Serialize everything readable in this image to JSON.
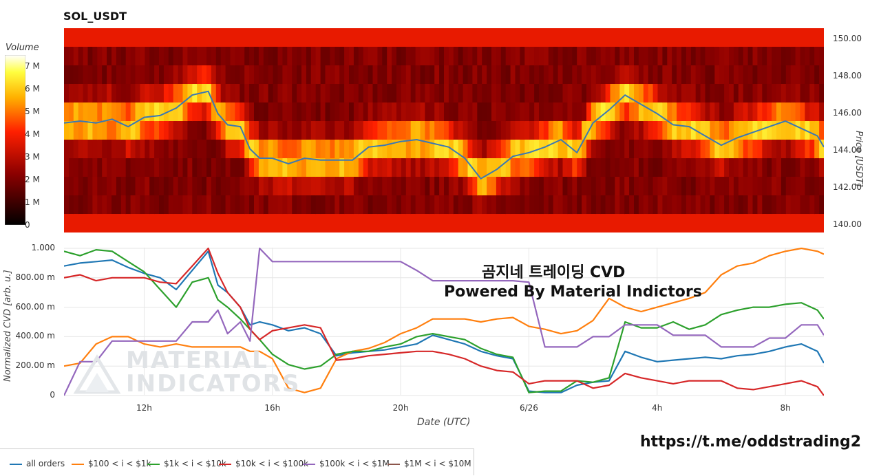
{
  "title": "SOL_USDT",
  "colorbar": {
    "title": "Volume",
    "ticks": [
      "7 M",
      "6 M",
      "5 M",
      "4 M",
      "3 M",
      "2 M",
      "1 M",
      "0"
    ]
  },
  "price_axis": {
    "label": "Price [USDT]",
    "ticks": [
      "150.00",
      "148.00",
      "146.00",
      "144.00",
      "142.00",
      "140.00"
    ]
  },
  "cvd_axis": {
    "label": "Normalized CVD [arb. u.]",
    "ticks": [
      "1.000",
      "800.00 m",
      "600.00 m",
      "400.00 m",
      "200.00 m",
      "0"
    ]
  },
  "x_axis": {
    "label": "Date (UTC)",
    "ticks": [
      "12h",
      "16h",
      "20h",
      "6/26",
      "4h",
      "8h"
    ]
  },
  "overlay": {
    "line1": "곰지네 트레이딩 CVD",
    "line2": "Powered By Material Indictors"
  },
  "watermark": {
    "line1": "MATERIAL",
    "line2": "INDICATORS"
  },
  "link": "https://t.me/oddstrading2",
  "legend": [
    {
      "label": "all orders",
      "color": "#1f77b4"
    },
    {
      "label": "$100 < i < $1k",
      "color": "#ff7f0e"
    },
    {
      "label": "$1k < i < $10k",
      "color": "#2ca02c"
    },
    {
      "label": "$10k < i < $100k",
      "color": "#d62728"
    },
    {
      "label": "$100k < i < $1M",
      "color": "#9467bd"
    },
    {
      "label": "$1M < i < $10M",
      "color": "#8c564b"
    }
  ],
  "chart_data": [
    {
      "type": "heatmap",
      "title": "SOL_USDT",
      "ylabel": "Price [USDT]",
      "ylim": [
        139.6,
        150.6
      ],
      "colorbar_label": "Volume",
      "colorbar_range": [
        0,
        7500000
      ],
      "price_series": {
        "x_hours": [
          9.5,
          10,
          10.5,
          11,
          11.5,
          12,
          12.5,
          13,
          13.5,
          14,
          14.3,
          14.6,
          15,
          15.3,
          15.6,
          16,
          16.5,
          17,
          17.5,
          18,
          18.5,
          19,
          19.5,
          20,
          20.5,
          21,
          21.5,
          22,
          22.5,
          23,
          23.5,
          24,
          24.5,
          25,
          25.5,
          26,
          26.5,
          27,
          27.5,
          28,
          28.5,
          29,
          29.5,
          30,
          30.5,
          31,
          31.5,
          32,
          32.5,
          33,
          33.2
        ],
        "price": [
          145.5,
          145.6,
          145.5,
          145.7,
          145.3,
          145.8,
          145.9,
          146.3,
          147.0,
          147.2,
          146.0,
          145.4,
          145.3,
          144.1,
          143.6,
          143.6,
          143.3,
          143.6,
          143.5,
          143.5,
          143.5,
          144.2,
          144.3,
          144.5,
          144.6,
          144.4,
          144.2,
          143.6,
          142.5,
          143.0,
          143.7,
          143.9,
          144.2,
          144.6,
          143.9,
          145.5,
          146.2,
          147.0,
          146.5,
          146.0,
          145.4,
          145.3,
          144.8,
          144.3,
          144.7,
          145.0,
          145.3,
          145.6,
          145.2,
          144.8,
          144.2
        ]
      }
    },
    {
      "type": "line",
      "xlabel": "Date (UTC)",
      "ylabel": "Normalized CVD [arb. u.]",
      "ylim": [
        0,
        1.0
      ],
      "x_hours": [
        9.5,
        10,
        10.5,
        11,
        11.5,
        12,
        12.5,
        13,
        13.5,
        14,
        14.3,
        14.6,
        15,
        15.3,
        15.6,
        16,
        16.5,
        17,
        17.5,
        18,
        18.5,
        19,
        19.5,
        20,
        20.5,
        21,
        21.5,
        22,
        22.5,
        23,
        23.5,
        24,
        24.5,
        25,
        25.5,
        26,
        26.5,
        27,
        27.5,
        28,
        28.5,
        29,
        29.5,
        30,
        30.5,
        31,
        31.5,
        32,
        32.5,
        33,
        33.2
      ],
      "series": [
        {
          "name": "all orders",
          "values": [
            0.88,
            0.9,
            0.91,
            0.92,
            0.87,
            0.83,
            0.8,
            0.72,
            0.85,
            0.98,
            0.75,
            0.7,
            0.6,
            0.48,
            0.5,
            0.48,
            0.44,
            0.46,
            0.42,
            0.27,
            0.29,
            0.3,
            0.31,
            0.33,
            0.35,
            0.41,
            0.38,
            0.35,
            0.3,
            0.27,
            0.25,
            0.03,
            0.02,
            0.02,
            0.07,
            0.09,
            0.1,
            0.3,
            0.26,
            0.23,
            0.24,
            0.25,
            0.26,
            0.25,
            0.27,
            0.28,
            0.3,
            0.33,
            0.35,
            0.3,
            0.22
          ]
        },
        {
          "name": "$100 < i < $1k",
          "values": [
            0.2,
            0.22,
            0.35,
            0.4,
            0.4,
            0.35,
            0.33,
            0.35,
            0.33,
            0.33,
            0.33,
            0.33,
            0.33,
            0.3,
            0.3,
            0.25,
            0.05,
            0.02,
            0.05,
            0.25,
            0.3,
            0.32,
            0.36,
            0.42,
            0.46,
            0.52,
            0.52,
            0.52,
            0.5,
            0.52,
            0.53,
            0.47,
            0.45,
            0.42,
            0.44,
            0.51,
            0.66,
            0.6,
            0.57,
            0.6,
            0.63,
            0.66,
            0.7,
            0.82,
            0.88,
            0.9,
            0.95,
            0.98,
            1.0,
            0.98,
            0.96
          ]
        },
        {
          "name": "$1k < i < $10k",
          "values": [
            0.98,
            0.95,
            0.99,
            0.98,
            0.91,
            0.84,
            0.72,
            0.6,
            0.77,
            0.8,
            0.65,
            0.6,
            0.52,
            0.45,
            0.38,
            0.28,
            0.21,
            0.18,
            0.2,
            0.28,
            0.3,
            0.3,
            0.33,
            0.35,
            0.4,
            0.42,
            0.4,
            0.38,
            0.32,
            0.28,
            0.26,
            0.02,
            0.03,
            0.03,
            0.1,
            0.09,
            0.12,
            0.5,
            0.46,
            0.46,
            0.5,
            0.45,
            0.48,
            0.55,
            0.58,
            0.6,
            0.6,
            0.62,
            0.63,
            0.58,
            0.52
          ]
        },
        {
          "name": "$10k < i < $100k",
          "values": [
            0.8,
            0.82,
            0.78,
            0.8,
            0.8,
            0.8,
            0.77,
            0.76,
            0.88,
            1.0,
            0.83,
            0.7,
            0.6,
            0.45,
            0.38,
            0.44,
            0.46,
            0.48,
            0.46,
            0.24,
            0.25,
            0.27,
            0.28,
            0.29,
            0.3,
            0.3,
            0.28,
            0.25,
            0.2,
            0.17,
            0.16,
            0.08,
            0.1,
            0.1,
            0.1,
            0.05,
            0.07,
            0.15,
            0.12,
            0.1,
            0.08,
            0.1,
            0.1,
            0.1,
            0.05,
            0.04,
            0.06,
            0.08,
            0.1,
            0.06,
            0.0
          ]
        },
        {
          "name": "$100k < i < $1M",
          "values": [
            0.0,
            0.23,
            0.23,
            0.37,
            0.37,
            0.37,
            0.37,
            0.37,
            0.5,
            0.5,
            0.58,
            0.42,
            0.5,
            0.37,
            1.0,
            0.91,
            0.91,
            0.91,
            0.91,
            0.91,
            0.91,
            0.91,
            0.91,
            0.91,
            0.85,
            0.78,
            0.78,
            0.78,
            0.78,
            0.78,
            0.78,
            0.77,
            0.33,
            0.33,
            0.33,
            0.4,
            0.4,
            0.48,
            0.48,
            0.48,
            0.41,
            0.41,
            0.41,
            0.33,
            0.33,
            0.33,
            0.39,
            0.39,
            0.48,
            0.48,
            0.41
          ]
        },
        {
          "name": "$1M < i < $10M",
          "values": []
        }
      ]
    }
  ]
}
